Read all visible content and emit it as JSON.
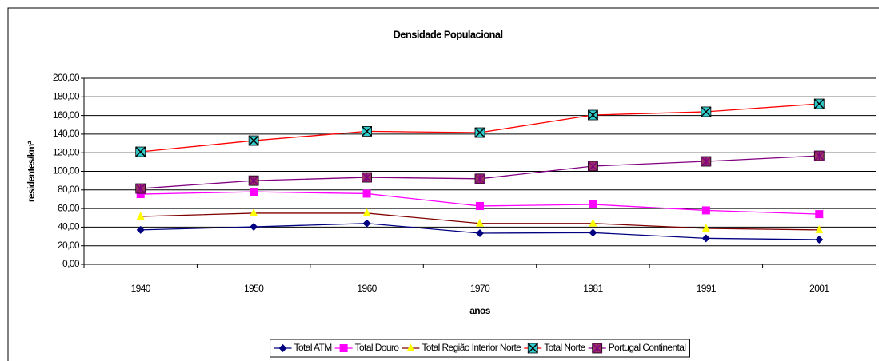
{
  "chart_data": {
    "type": "line",
    "title": "Densidade Populacional",
    "x_label": "anos",
    "y_label": "residentes/km²",
    "categories": [
      "1940",
      "1950",
      "1960",
      "1970",
      "1981",
      "1991",
      "2001"
    ],
    "series": [
      {
        "name": "Total ATM",
        "color": "#000080",
        "marker_color": "#000080",
        "marker": "diamond",
        "values": [
          37,
          40.3,
          44,
          33.5,
          34,
          28,
          26.6
        ]
      },
      {
        "name": "Total Douro",
        "color": "#ff00ff",
        "marker_color": "#ff00ff",
        "marker": "square",
        "values": [
          75.5,
          78,
          76,
          62.7,
          64.4,
          58,
          54
        ]
      },
      {
        "name": "Total Região Interior Norte",
        "color": "#800000",
        "marker_color": "#ffff00",
        "marker": "triangle",
        "values": [
          51.5,
          55,
          55,
          44,
          44,
          38.6,
          37
        ]
      },
      {
        "name": "Total Norte",
        "color": "#ff0000",
        "marker_color": "#33cccc",
        "marker": "xsquare",
        "values": [
          121,
          133,
          143,
          141.6,
          160.5,
          164,
          172.5
        ]
      },
      {
        "name": "Portugal Continental",
        "color": "#800080",
        "marker_color": "#993366",
        "marker": "starsquare",
        "values": [
          81.5,
          90,
          93.5,
          92,
          105.6,
          110.7,
          116.7
        ]
      }
    ],
    "ylim": [
      0,
      200
    ],
    "yticks": [
      {
        "value": 0,
        "label": "0,00"
      },
      {
        "value": 20,
        "label": "20,00"
      },
      {
        "value": 40,
        "label": "40,00"
      },
      {
        "value": 60,
        "label": "60,00"
      },
      {
        "value": 80,
        "label": "80,00"
      },
      {
        "value": 100,
        "label": "100,00"
      },
      {
        "value": 120,
        "label": "120,00"
      },
      {
        "value": 140,
        "label": "140,00"
      },
      {
        "value": 160,
        "label": "160,00"
      },
      {
        "value": 180,
        "label": "180,00"
      },
      {
        "value": 200,
        "label": "200,00"
      }
    ],
    "grid": true
  }
}
